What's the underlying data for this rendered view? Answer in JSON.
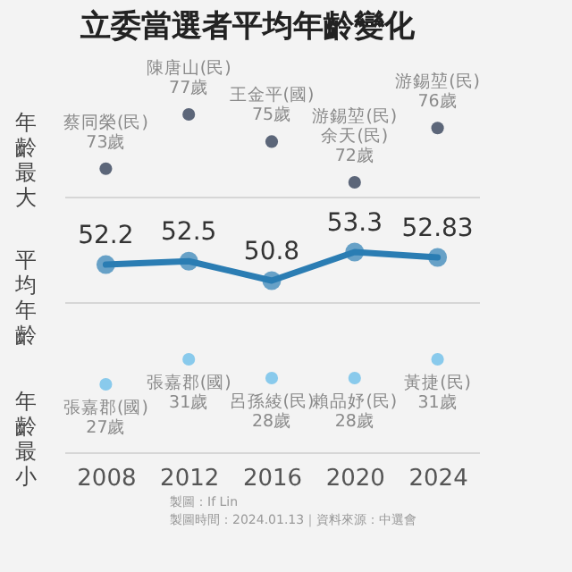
{
  "chart_data": [
    {
      "type": "scatter",
      "title": "立委當選者平均年齡變化",
      "ylabel": "年齡最大",
      "categories": [
        "2008",
        "2012",
        "2016",
        "2020",
        "2024"
      ],
      "values": [
        73,
        77,
        75,
        72,
        76
      ],
      "color": "#1b2a44",
      "marker": "circle",
      "tick_labels": false,
      "value_labels": [
        "蔡同榮(民)\n73歲",
        "陳唐山(民)\n77歲",
        "王金平(國)\n75歲",
        "游錫堃(民)\n余天(民)\n72歲",
        "游錫堃(民)\n76歲"
      ]
    },
    {
      "type": "line",
      "ylabel": "平均年齡",
      "categories": [
        "2008",
        "2012",
        "2016",
        "2020",
        "2024"
      ],
      "values": [
        52.2,
        52.5,
        50.8,
        53.3,
        52.83
      ],
      "color": "#2b7db3",
      "marker": "circle",
      "data_labels": true,
      "tick_labels": false
    },
    {
      "type": "scatter",
      "ylabel": "年齡最小",
      "categories": [
        "2008",
        "2012",
        "2016",
        "2020",
        "2024"
      ],
      "values": [
        27,
        31,
        28,
        28,
        31
      ],
      "color": "#5bb8e8",
      "marker": "circle",
      "value_labels": [
        "張嘉郡(國)\n27歲",
        "張嘉郡(國)\n31歲",
        "呂孫綾(民)\n28歲",
        "賴品妤(民)\n28歲",
        "黃捷(民)\n31歲"
      ],
      "annotations": [
        "製圖：If Lin",
        "製圖時間：2024.01.13｜資料來源：中選會"
      ]
    }
  ]
}
